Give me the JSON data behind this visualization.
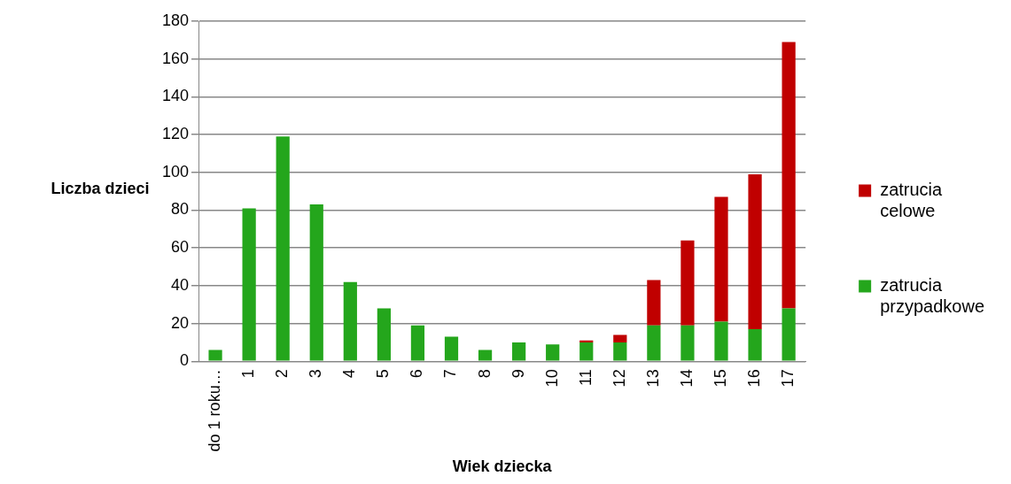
{
  "chart_data": {
    "type": "bar",
    "stacked": true,
    "xlabel": "Wiek dziecka",
    "ylabel": "Liczba dzieci",
    "categories": [
      "do 1 roku…",
      "1",
      "2",
      "3",
      "4",
      "5",
      "6",
      "7",
      "8",
      "9",
      "10",
      "11",
      "12",
      "13",
      "14",
      "15",
      "16",
      "17"
    ],
    "series": [
      {
        "name": "zatrucia przypadkowe",
        "color": "#24a61c",
        "values": [
          6,
          81,
          119,
          83,
          42,
          28,
          19,
          13,
          6,
          10,
          9,
          10,
          10,
          19,
          19,
          21,
          17,
          28
        ]
      },
      {
        "name": "zatrucia celowe",
        "color": "#c00000",
        "values": [
          0,
          0,
          0,
          0,
          0,
          0,
          0,
          0,
          0,
          0,
          0,
          1,
          4,
          24,
          45,
          66,
          82,
          141
        ]
      }
    ],
    "ylim": [
      0,
      180
    ],
    "yticks": [
      0,
      20,
      40,
      60,
      80,
      100,
      120,
      140,
      160,
      180
    ],
    "grid": "y",
    "legend": "right"
  }
}
